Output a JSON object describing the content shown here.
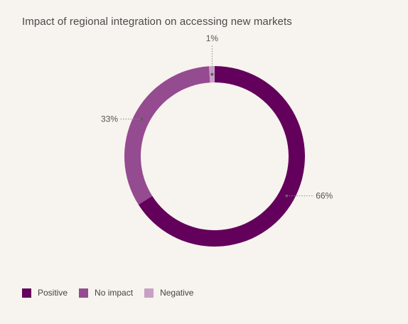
{
  "chart_data": {
    "type": "pie",
    "title": "Impact of regional integration on accessing new markets",
    "categories": [
      "Positive",
      "No impact",
      "Negative"
    ],
    "values": [
      66,
      33,
      1
    ],
    "labels": [
      "66%",
      "33%",
      "1%"
    ],
    "colors": [
      "#63005b",
      "#954b90",
      "#c8a0c4"
    ],
    "legend_position": "bottom-left"
  }
}
